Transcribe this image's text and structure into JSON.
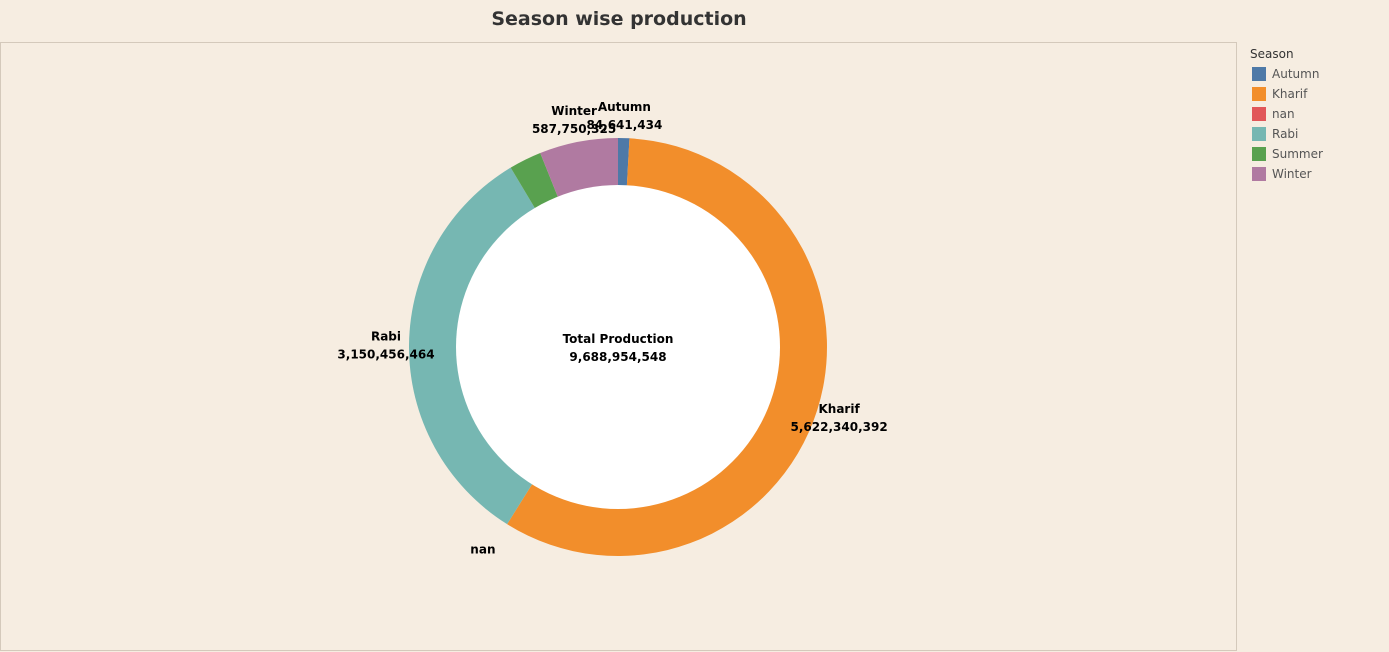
{
  "chart_data": {
    "type": "pie",
    "title": "Season wise production",
    "center_label": "Total Production",
    "total": "9,688,954,548",
    "legend_title": "Season",
    "slices": [
      {
        "label": "Autumn",
        "value": 84641434,
        "display": "84,641,434",
        "color": "#4e79a7"
      },
      {
        "label": "Kharif",
        "value": 5622340392,
        "display": "5,622,340,392",
        "color": "#f28e2b"
      },
      {
        "label": "nan",
        "value": 1,
        "display": "",
        "color": "#e15759"
      },
      {
        "label": "Rabi",
        "value": 3150456464,
        "display": "3,150,456,464",
        "color": "#76b7b2"
      },
      {
        "label": "Summer",
        "value": 243765933,
        "display": "",
        "color": "#59a14f"
      },
      {
        "label": "Winter",
        "value": 587750325,
        "display": "587,750,325",
        "color": "#b07aa1"
      }
    ]
  }
}
